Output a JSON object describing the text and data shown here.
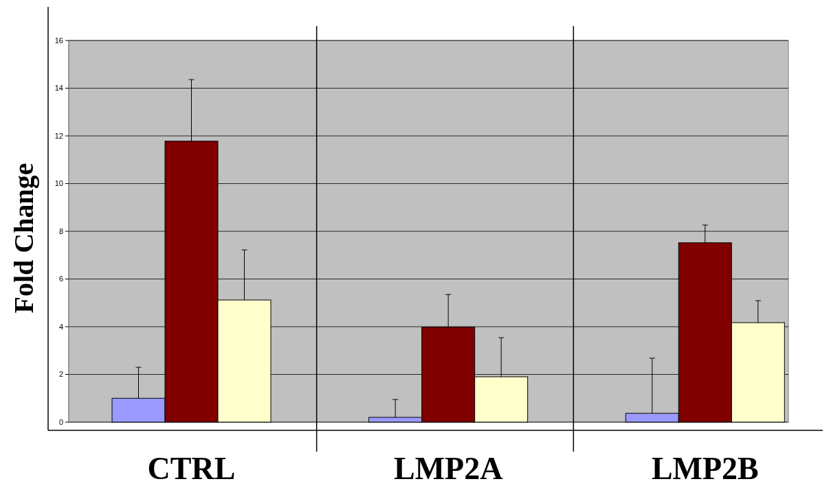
{
  "chart_data": {
    "type": "bar",
    "ylabel": "Fold Change",
    "categories": [
      "CTRL",
      "LMP2A",
      "LMP2B"
    ],
    "series": [
      {
        "color": "#9999ff",
        "values": [
          1.0,
          0.2,
          0.37
        ],
        "errors": [
          [
            1.0,
            2.3
          ],
          [
            0.2,
            0.95
          ],
          [
            0.37,
            2.68
          ]
        ]
      },
      {
        "color": "#800000",
        "values": [
          11.78,
          3.98,
          7.52
        ],
        "errors": [
          [
            11.78,
            14.36
          ],
          [
            3.98,
            5.35
          ],
          [
            7.52,
            8.26
          ]
        ]
      },
      {
        "color": "#ffffcc",
        "values": [
          5.12,
          1.9,
          4.17
        ],
        "errors": [
          [
            5.12,
            7.22
          ],
          [
            1.9,
            3.54
          ],
          [
            4.17,
            5.09
          ]
        ]
      }
    ],
    "ylim": [
      0,
      16
    ],
    "yticks": [
      0,
      2,
      4,
      6,
      8,
      10,
      12,
      14,
      16
    ],
    "grid": "y"
  }
}
